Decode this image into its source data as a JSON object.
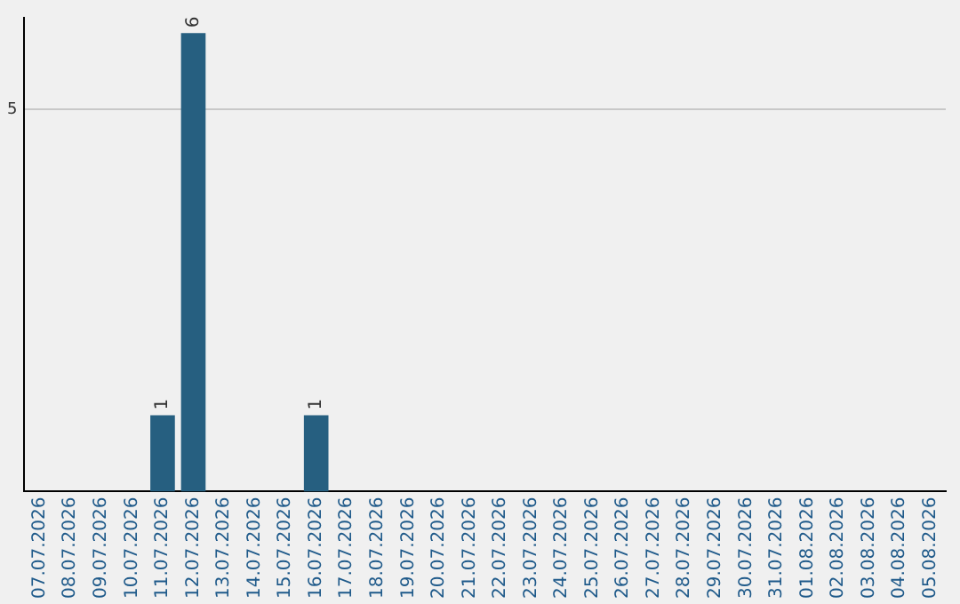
{
  "chart_data": {
    "type": "bar",
    "categories": [
      "07.07.2026",
      "08.07.2026",
      "09.07.2026",
      "10.07.2026",
      "11.07.2026",
      "12.07.2026",
      "13.07.2026",
      "14.07.2026",
      "15.07.2026",
      "16.07.2026",
      "17.07.2026",
      "18.07.2026",
      "19.07.2026",
      "20.07.2026",
      "21.07.2026",
      "22.07.2026",
      "23.07.2026",
      "24.07.2026",
      "25.07.2026",
      "26.07.2026",
      "27.07.2026",
      "28.07.2026",
      "29.07.2026",
      "30.07.2026",
      "31.07.2026",
      "01.08.2026",
      "02.08.2026",
      "03.08.2026",
      "04.08.2026",
      "05.08.2026"
    ],
    "values": [
      0,
      0,
      0,
      0,
      1,
      6,
      0,
      0,
      0,
      1,
      0,
      0,
      0,
      0,
      0,
      0,
      0,
      0,
      0,
      0,
      0,
      0,
      0,
      0,
      0,
      0,
      0,
      0,
      0,
      0
    ],
    "value_labels": [
      null,
      null,
      null,
      null,
      "1",
      "6",
      null,
      null,
      null,
      "1",
      null,
      null,
      null,
      null,
      null,
      null,
      null,
      null,
      null,
      null,
      null,
      null,
      null,
      null,
      null,
      null,
      null,
      null,
      null,
      null
    ],
    "color": "#265f80",
    "ylim": [
      0,
      6.2
    ],
    "yticks": [
      5
    ],
    "grid": "y",
    "legend": false
  }
}
